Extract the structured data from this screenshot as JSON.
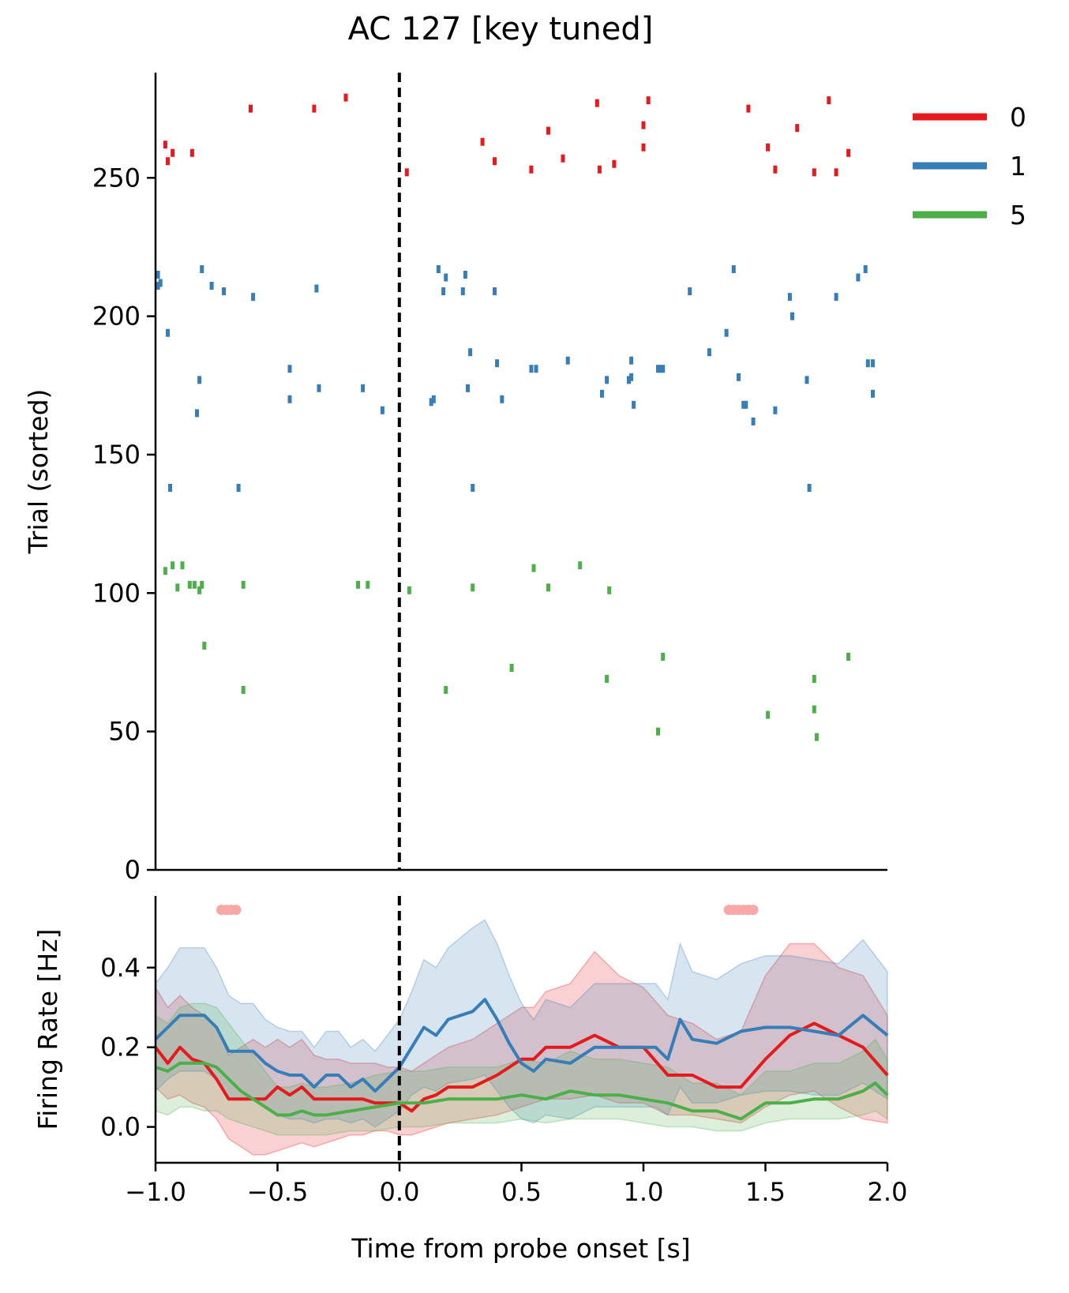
{
  "chart_data": [
    {
      "type": "scatter",
      "title": "AC 127 [key tuned]",
      "xlabel": "",
      "ylabel": "Trial (sorted)",
      "xlim": [
        -1.0,
        2.0
      ],
      "ylim": [
        0,
        288
      ],
      "yticks": [
        0,
        50,
        100,
        150,
        200,
        250
      ],
      "ytick_labels": [
        "0",
        "50",
        "100",
        "150",
        "200",
        "250"
      ],
      "vline_x": 0.0,
      "legend": {
        "placement": "outside-top-right",
        "entries": [
          "0",
          "1",
          "5"
        ]
      },
      "series": [
        {
          "name": "0",
          "color": "#e41a1c",
          "points": [
            [
              -0.96,
              262
            ],
            [
              -0.95,
              256
            ],
            [
              -0.93,
              259
            ],
            [
              -0.85,
              259
            ],
            [
              -0.61,
              275
            ],
            [
              -0.35,
              275
            ],
            [
              -0.22,
              279
            ],
            [
              0.03,
              252
            ],
            [
              0.34,
              263
            ],
            [
              0.39,
              256
            ],
            [
              0.54,
              253
            ],
            [
              0.61,
              267
            ],
            [
              0.67,
              257
            ],
            [
              0.81,
              277
            ],
            [
              0.82,
              253
            ],
            [
              0.88,
              255
            ],
            [
              1.0,
              269
            ],
            [
              1.0,
              261
            ],
            [
              1.02,
              278
            ],
            [
              1.43,
              275
            ],
            [
              1.51,
              261
            ],
            [
              1.54,
              253
            ],
            [
              1.63,
              268
            ],
            [
              1.7,
              252
            ],
            [
              1.76,
              278
            ],
            [
              1.79,
              252
            ],
            [
              1.84,
              259
            ]
          ]
        },
        {
          "name": "1",
          "color": "#377eb8",
          "points": [
            [
              -0.99,
              215
            ],
            [
              -0.99,
              211
            ],
            [
              -0.98,
              212
            ],
            [
              -0.95,
              194
            ],
            [
              -0.94,
              138
            ],
            [
              -0.83,
              165
            ],
            [
              -0.82,
              177
            ],
            [
              -0.81,
              217
            ],
            [
              -0.77,
              211
            ],
            [
              -0.72,
              209
            ],
            [
              -0.66,
              138
            ],
            [
              -0.6,
              207
            ],
            [
              -0.45,
              181
            ],
            [
              -0.45,
              170
            ],
            [
              -0.34,
              210
            ],
            [
              -0.33,
              174
            ],
            [
              -0.15,
              174
            ],
            [
              -0.07,
              166
            ],
            [
              0.13,
              169
            ],
            [
              0.14,
              170
            ],
            [
              0.16,
              217
            ],
            [
              0.18,
              209
            ],
            [
              0.19,
              214
            ],
            [
              0.26,
              209
            ],
            [
              0.27,
              215
            ],
            [
              0.28,
              174
            ],
            [
              0.29,
              187
            ],
            [
              0.3,
              138
            ],
            [
              0.39,
              209
            ],
            [
              0.4,
              183
            ],
            [
              0.42,
              170
            ],
            [
              0.54,
              181
            ],
            [
              0.56,
              181
            ],
            [
              0.69,
              184
            ],
            [
              0.83,
              172
            ],
            [
              0.85,
              177
            ],
            [
              0.94,
              177
            ],
            [
              0.95,
              178
            ],
            [
              0.95,
              184
            ],
            [
              0.96,
              168
            ],
            [
              1.06,
              181
            ],
            [
              1.07,
              181
            ],
            [
              1.08,
              181
            ],
            [
              1.19,
              209
            ],
            [
              1.27,
              187
            ],
            [
              1.34,
              194
            ],
            [
              1.37,
              217
            ],
            [
              1.39,
              178
            ],
            [
              1.41,
              168
            ],
            [
              1.42,
              168
            ],
            [
              1.45,
              162
            ],
            [
              1.54,
              166
            ],
            [
              1.6,
              207
            ],
            [
              1.61,
              200
            ],
            [
              1.67,
              177
            ],
            [
              1.68,
              138
            ],
            [
              1.79,
              207
            ],
            [
              1.88,
              214
            ],
            [
              1.91,
              217
            ],
            [
              1.92,
              183
            ],
            [
              1.94,
              183
            ],
            [
              1.94,
              172
            ]
          ]
        },
        {
          "name": "5",
          "color": "#4daf4a",
          "points": [
            [
              -0.96,
              108
            ],
            [
              -0.93,
              110
            ],
            [
              -0.91,
              102
            ],
            [
              -0.89,
              110
            ],
            [
              -0.86,
              103
            ],
            [
              -0.84,
              103
            ],
            [
              -0.82,
              101
            ],
            [
              -0.81,
              103
            ],
            [
              -0.8,
              81
            ],
            [
              -0.64,
              103
            ],
            [
              -0.64,
              65
            ],
            [
              -0.17,
              103
            ],
            [
              -0.13,
              103
            ],
            [
              0.04,
              101
            ],
            [
              0.19,
              65
            ],
            [
              0.3,
              102
            ],
            [
              0.46,
              73
            ],
            [
              0.55,
              109
            ],
            [
              0.61,
              102
            ],
            [
              0.74,
              110
            ],
            [
              0.85,
              69
            ],
            [
              0.86,
              101
            ],
            [
              1.06,
              50
            ],
            [
              1.08,
              77
            ],
            [
              1.51,
              56
            ],
            [
              1.7,
              58
            ],
            [
              1.7,
              69
            ],
            [
              1.71,
              48
            ],
            [
              1.84,
              77
            ]
          ]
        }
      ]
    },
    {
      "type": "line",
      "title": "",
      "xlabel": "Time from probe onset [s]",
      "ylabel": "Firing Rate [Hz]",
      "xlim": [
        -1.0,
        2.0
      ],
      "ylim": [
        -0.09,
        0.58
      ],
      "xticks": [
        -1.0,
        -0.5,
        0.0,
        0.5,
        1.0,
        1.5,
        2.0
      ],
      "xtick_labels": [
        "−1.0",
        "−0.5",
        "0.0",
        "0.5",
        "1.0",
        "1.5",
        "2.0"
      ],
      "yticks": [
        0.0,
        0.2,
        0.4
      ],
      "ytick_labels": [
        "0.0",
        "0.2",
        "0.4"
      ],
      "vline_x": 0.0,
      "significance_marker": {
        "y": 0.545,
        "color": "#f9a8a8",
        "x": [
          -0.73,
          -0.71,
          -0.69,
          -0.67,
          1.35,
          1.37,
          1.39,
          1.41,
          1.43,
          1.45
        ]
      },
      "series": [
        {
          "name": "0",
          "color": "#e41a1c",
          "x": [
            -1.0,
            -0.95,
            -0.9,
            -0.85,
            -0.8,
            -0.75,
            -0.7,
            -0.65,
            -0.6,
            -0.55,
            -0.5,
            -0.45,
            -0.4,
            -0.35,
            -0.3,
            -0.25,
            -0.2,
            -0.15,
            -0.1,
            -0.05,
            0.0,
            0.05,
            0.1,
            0.15,
            0.2,
            0.3,
            0.4,
            0.5,
            0.55,
            0.6,
            0.7,
            0.8,
            0.9,
            1.0,
            1.1,
            1.2,
            1.3,
            1.4,
            1.5,
            1.6,
            1.7,
            1.8,
            1.9,
            2.0
          ],
          "mean": [
            0.2,
            0.16,
            0.2,
            0.17,
            0.16,
            0.12,
            0.07,
            0.07,
            0.07,
            0.07,
            0.1,
            0.08,
            0.1,
            0.07,
            0.07,
            0.07,
            0.07,
            0.07,
            0.06,
            0.06,
            0.06,
            0.04,
            0.07,
            0.08,
            0.1,
            0.1,
            0.13,
            0.17,
            0.17,
            0.2,
            0.2,
            0.23,
            0.2,
            0.2,
            0.13,
            0.13,
            0.1,
            0.1,
            0.17,
            0.23,
            0.26,
            0.23,
            0.2,
            0.13
          ],
          "lower": [
            0.1,
            0.07,
            0.08,
            0.06,
            0.05,
            0.02,
            -0.03,
            -0.05,
            -0.07,
            -0.07,
            -0.06,
            -0.05,
            -0.04,
            -0.05,
            -0.04,
            -0.03,
            -0.02,
            -0.02,
            -0.01,
            -0.01,
            -0.02,
            -0.02,
            -0.01,
            0.0,
            0.01,
            0.02,
            0.03,
            0.05,
            0.06,
            0.07,
            0.07,
            0.08,
            0.06,
            0.06,
            0.03,
            0.03,
            0.02,
            0.01,
            0.05,
            0.08,
            0.09,
            0.05,
            0.02,
            0.01
          ],
          "upper": [
            0.35,
            0.3,
            0.33,
            0.3,
            0.28,
            0.25,
            0.18,
            0.2,
            0.22,
            0.2,
            0.22,
            0.2,
            0.22,
            0.18,
            0.17,
            0.17,
            0.16,
            0.16,
            0.16,
            0.15,
            0.15,
            0.14,
            0.16,
            0.18,
            0.2,
            0.22,
            0.26,
            0.3,
            0.3,
            0.34,
            0.36,
            0.44,
            0.38,
            0.35,
            0.28,
            0.26,
            0.22,
            0.24,
            0.38,
            0.46,
            0.46,
            0.4,
            0.38,
            0.28
          ]
        },
        {
          "name": "1",
          "color": "#377eb8",
          "x": [
            -1.0,
            -0.95,
            -0.9,
            -0.85,
            -0.8,
            -0.75,
            -0.7,
            -0.65,
            -0.6,
            -0.55,
            -0.5,
            -0.45,
            -0.4,
            -0.35,
            -0.3,
            -0.25,
            -0.2,
            -0.15,
            -0.1,
            -0.05,
            0.0,
            0.05,
            0.1,
            0.15,
            0.2,
            0.3,
            0.35,
            0.4,
            0.45,
            0.5,
            0.55,
            0.6,
            0.7,
            0.8,
            0.9,
            1.0,
            1.05,
            1.1,
            1.15,
            1.2,
            1.3,
            1.4,
            1.5,
            1.6,
            1.7,
            1.8,
            1.9,
            2.0
          ],
          "mean": [
            0.22,
            0.25,
            0.28,
            0.28,
            0.28,
            0.25,
            0.19,
            0.19,
            0.19,
            0.16,
            0.14,
            0.13,
            0.13,
            0.1,
            0.13,
            0.13,
            0.1,
            0.12,
            0.09,
            0.12,
            0.15,
            0.2,
            0.25,
            0.23,
            0.27,
            0.29,
            0.32,
            0.27,
            0.21,
            0.16,
            0.14,
            0.17,
            0.16,
            0.2,
            0.2,
            0.2,
            0.2,
            0.17,
            0.27,
            0.22,
            0.21,
            0.24,
            0.25,
            0.25,
            0.24,
            0.23,
            0.28,
            0.23
          ],
          "lower": [
            0.09,
            0.12,
            0.14,
            0.14,
            0.14,
            0.12,
            0.07,
            0.07,
            0.07,
            0.05,
            0.03,
            0.02,
            0.02,
            0.01,
            0.02,
            0.02,
            0.01,
            0.02,
            0.0,
            0.02,
            0.04,
            0.08,
            0.1,
            0.09,
            0.11,
            0.12,
            0.13,
            0.09,
            0.05,
            0.02,
            0.01,
            0.03,
            0.02,
            0.05,
            0.05,
            0.05,
            0.05,
            0.03,
            0.1,
            0.06,
            0.06,
            0.08,
            0.09,
            0.09,
            0.08,
            0.08,
            0.11,
            0.07
          ],
          "upper": [
            0.36,
            0.4,
            0.45,
            0.45,
            0.45,
            0.4,
            0.33,
            0.31,
            0.31,
            0.27,
            0.25,
            0.24,
            0.24,
            0.2,
            0.24,
            0.24,
            0.2,
            0.22,
            0.19,
            0.23,
            0.27,
            0.34,
            0.42,
            0.4,
            0.45,
            0.5,
            0.52,
            0.46,
            0.38,
            0.31,
            0.27,
            0.32,
            0.3,
            0.36,
            0.36,
            0.36,
            0.36,
            0.32,
            0.46,
            0.39,
            0.37,
            0.41,
            0.43,
            0.43,
            0.42,
            0.41,
            0.47,
            0.39
          ]
        },
        {
          "name": "5",
          "color": "#4daf4a",
          "x": [
            -1.0,
            -0.95,
            -0.9,
            -0.85,
            -0.8,
            -0.75,
            -0.7,
            -0.65,
            -0.6,
            -0.55,
            -0.5,
            -0.45,
            -0.4,
            -0.35,
            -0.3,
            -0.2,
            -0.1,
            0.0,
            0.1,
            0.2,
            0.3,
            0.4,
            0.5,
            0.6,
            0.7,
            0.8,
            0.9,
            1.0,
            1.1,
            1.2,
            1.3,
            1.4,
            1.5,
            1.6,
            1.7,
            1.8,
            1.9,
            1.95,
            2.0
          ],
          "mean": [
            0.15,
            0.14,
            0.16,
            0.16,
            0.16,
            0.15,
            0.12,
            0.09,
            0.07,
            0.05,
            0.03,
            0.03,
            0.04,
            0.03,
            0.03,
            0.04,
            0.05,
            0.06,
            0.06,
            0.07,
            0.07,
            0.07,
            0.08,
            0.07,
            0.09,
            0.08,
            0.08,
            0.07,
            0.06,
            0.04,
            0.04,
            0.02,
            0.06,
            0.06,
            0.07,
            0.07,
            0.09,
            0.11,
            0.08
          ],
          "lower": [
            0.04,
            0.03,
            0.05,
            0.05,
            0.04,
            0.04,
            0.02,
            0.01,
            0.0,
            -0.01,
            -0.02,
            -0.02,
            -0.02,
            -0.02,
            -0.02,
            -0.01,
            -0.01,
            0.0,
            0.0,
            0.01,
            0.01,
            0.01,
            0.02,
            0.01,
            0.02,
            0.02,
            0.02,
            0.01,
            0.0,
            0.0,
            -0.01,
            -0.01,
            0.01,
            0.02,
            0.02,
            0.02,
            0.03,
            0.04,
            0.02
          ],
          "upper": [
            0.28,
            0.26,
            0.3,
            0.31,
            0.31,
            0.3,
            0.26,
            0.22,
            0.18,
            0.14,
            0.1,
            0.1,
            0.11,
            0.1,
            0.1,
            0.11,
            0.13,
            0.14,
            0.14,
            0.15,
            0.15,
            0.15,
            0.17,
            0.16,
            0.19,
            0.17,
            0.17,
            0.16,
            0.15,
            0.11,
            0.11,
            0.08,
            0.14,
            0.14,
            0.16,
            0.16,
            0.19,
            0.22,
            0.17
          ]
        }
      ]
    }
  ]
}
